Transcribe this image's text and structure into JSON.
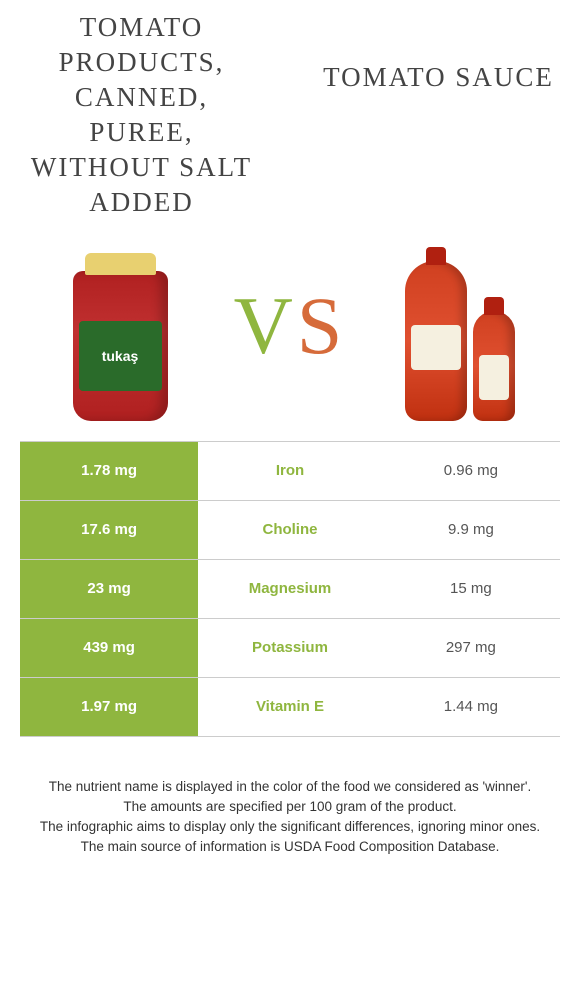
{
  "left_product": {
    "title": "Tomato products, canned, puree, without salt added",
    "jar_label": "tukaş"
  },
  "right_product": {
    "title": "Tomato sauce"
  },
  "vs": {
    "v": "V",
    "s": "S"
  },
  "colors": {
    "winner_bg": "#8fb63f",
    "nutrient_text": "#8fb63f",
    "neutral_text": "#555555"
  },
  "table": {
    "rows": [
      {
        "left": "1.78 mg",
        "nutrient": "Iron",
        "right": "0.96 mg"
      },
      {
        "left": "17.6 mg",
        "nutrient": "Choline",
        "right": "9.9 mg"
      },
      {
        "left": "23 mg",
        "nutrient": "Magnesium",
        "right": "15 mg"
      },
      {
        "left": "439 mg",
        "nutrient": "Potassium",
        "right": "297 mg"
      },
      {
        "left": "1.97 mg",
        "nutrient": "Vitamin E",
        "right": "1.44 mg"
      }
    ]
  },
  "footnotes": [
    "The nutrient name is displayed in the color of the food we considered as 'winner'.",
    "The amounts are specified per 100 gram of the product.",
    "The infographic aims to display only the significant differences, ignoring minor ones.",
    "The main source of information is USDA Food Composition Database."
  ]
}
